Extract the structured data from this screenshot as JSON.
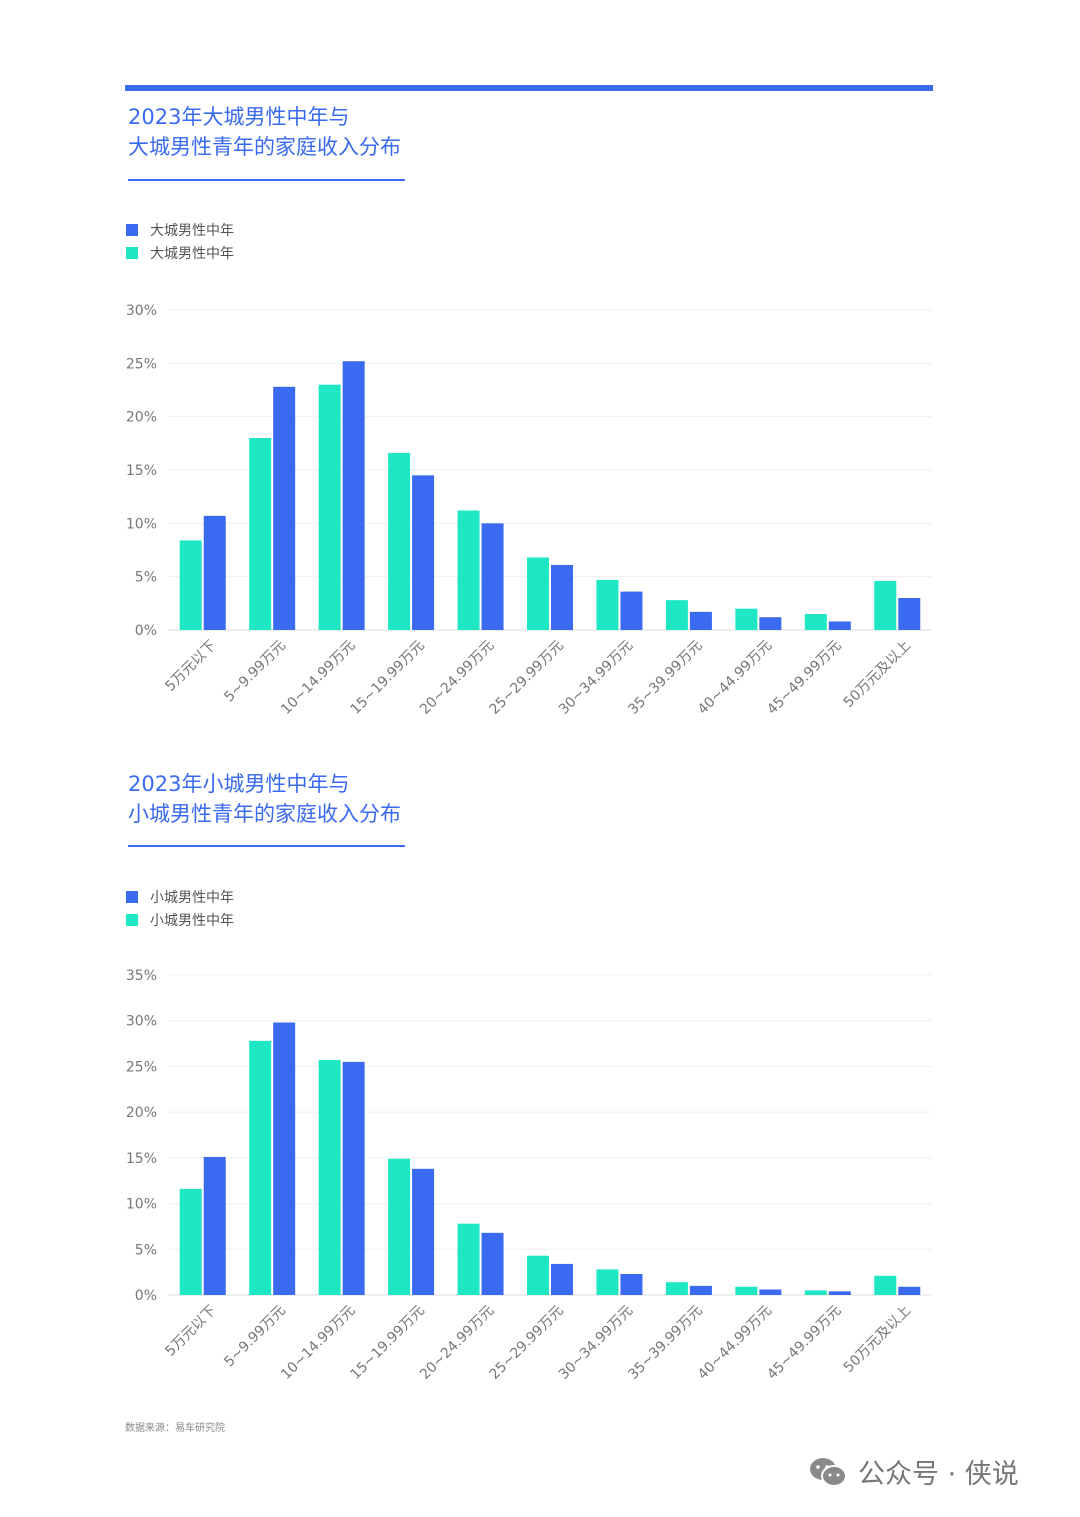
{
  "colors": {
    "blue": "#3a6af0",
    "teal": "#1ee8c4",
    "grid": "#ececec",
    "axis": "#777777"
  },
  "charts": [
    {
      "title_line1": "2023年大城男性中年与",
      "title_line2": "大城男性青年的家庭收入分布",
      "legend": [
        "大城男性中年",
        "大城男性中年"
      ]
    },
    {
      "title_line1": "2023年小城男性中年与",
      "title_line2": "小城男性青年的家庭收入分布",
      "legend": [
        "小城男性中年",
        "小城男性中年"
      ]
    }
  ],
  "footnote": "数据来源：易车研究院",
  "watermark": {
    "text": "公众号 · 侠说",
    "icon": "wechat-icon"
  },
  "chart_data": [
    {
      "type": "bar",
      "title": "2023年大城男性中年与大城男性青年的家庭收入分布",
      "categories": [
        "5万元以下",
        "5~9.99万元",
        "10~14.99万元",
        "15~19.99万元",
        "20~24.99万元",
        "25~29.99万元",
        "30~34.99万元",
        "35~39.99万元",
        "40~44.99万元",
        "45~49.99万元",
        "50万元及以上"
      ],
      "series": [
        {
          "name": "大城男性中年",
          "color": "#1ee8c4",
          "values": [
            8.4,
            18.0,
            23.0,
            16.6,
            11.2,
            6.8,
            4.7,
            2.8,
            2.0,
            1.5,
            4.6
          ]
        },
        {
          "name": "大城男性中年",
          "color": "#3a6af0",
          "values": [
            10.7,
            22.8,
            25.2,
            14.5,
            10.0,
            6.1,
            3.6,
            1.7,
            1.2,
            0.8,
            3.0
          ]
        }
      ],
      "ylim": [
        0,
        30
      ],
      "yticks": [
        "0%",
        "5%",
        "10%",
        "15%",
        "20%",
        "25%",
        "30%"
      ],
      "grid": true,
      "legend_position": "top-left"
    },
    {
      "type": "bar",
      "title": "2023年小城男性中年与小城男性青年的家庭收入分布",
      "categories": [
        "5万元以下",
        "5~9.99万元",
        "10~14.99万元",
        "15~19.99万元",
        "20~24.99万元",
        "25~29.99万元",
        "30~34.99万元",
        "35~39.99万元",
        "40~44.99万元",
        "45~49.99万元",
        "50万元及以上"
      ],
      "series": [
        {
          "name": "小城男性中年",
          "color": "#1ee8c4",
          "values": [
            11.6,
            27.8,
            25.7,
            14.9,
            7.8,
            4.3,
            2.8,
            1.4,
            0.9,
            0.5,
            2.1
          ]
        },
        {
          "name": "小城男性中年",
          "color": "#3a6af0",
          "values": [
            15.1,
            29.8,
            25.5,
            13.8,
            6.8,
            3.4,
            2.3,
            1.0,
            0.6,
            0.4,
            0.9
          ]
        }
      ],
      "ylim": [
        0,
        35
      ],
      "yticks": [
        "0%",
        "5%",
        "10%",
        "15%",
        "20%",
        "25%",
        "30%",
        "35%"
      ],
      "grid": true,
      "legend_position": "top-left"
    }
  ]
}
